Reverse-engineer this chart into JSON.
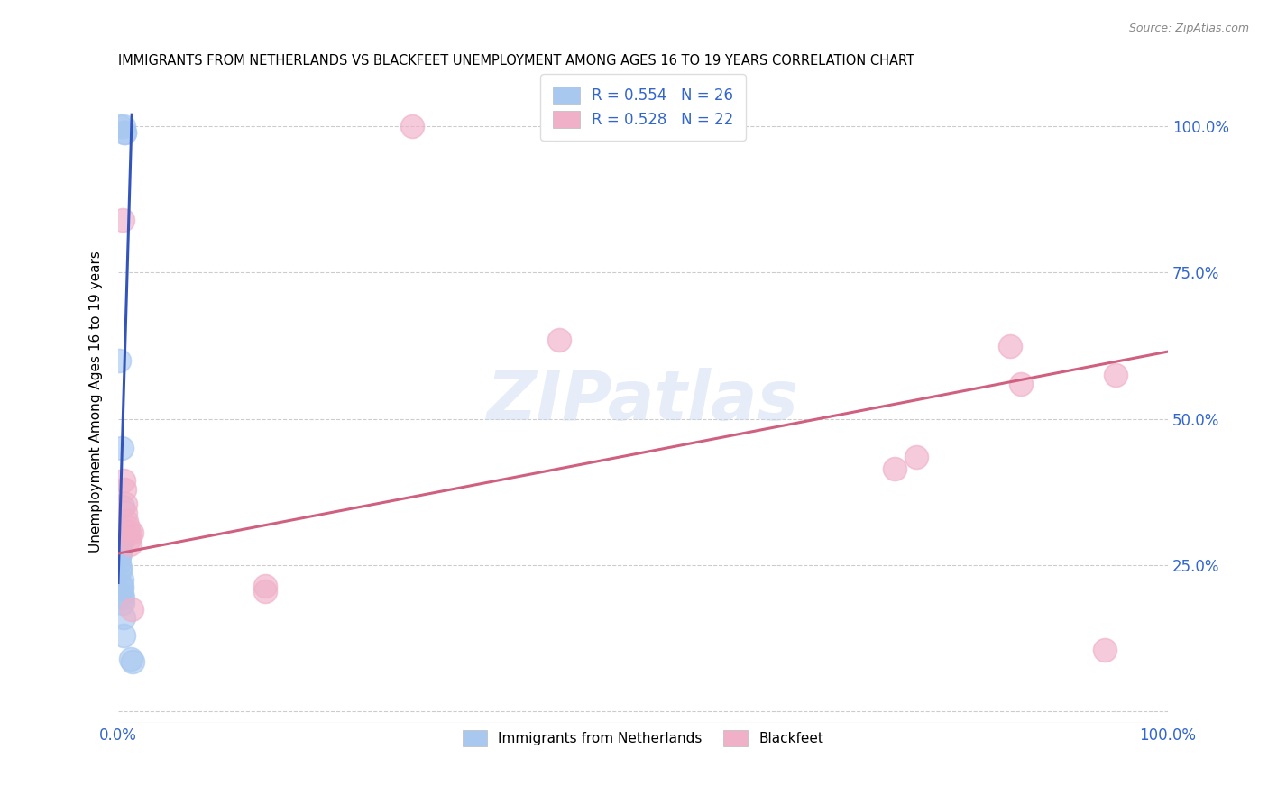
{
  "title": "IMMIGRANTS FROM NETHERLANDS VS BLACKFEET UNEMPLOYMENT AMONG AGES 16 TO 19 YEARS CORRELATION CHART",
  "source": "Source: ZipAtlas.com",
  "ylabel": "Unemployment Among Ages 16 to 19 years",
  "xlim": [
    0.0,
    1.0
  ],
  "ylim": [
    -0.02,
    1.08
  ],
  "yticks": [
    0.0,
    0.25,
    0.5,
    0.75,
    1.0
  ],
  "ytick_labels": [
    "",
    "25.0%",
    "50.0%",
    "75.0%",
    "100.0%"
  ],
  "xticks": [
    0.0,
    0.2,
    0.4,
    0.6,
    0.8,
    1.0
  ],
  "xtick_labels": [
    "0.0%",
    "",
    "",
    "",
    "",
    "100.0%"
  ],
  "legend_label1": "R = 0.554   N = 26",
  "legend_label2": "R = 0.528   N = 22",
  "legend_labels_bottom": [
    "Immigrants from Netherlands",
    "Blackfeet"
  ],
  "blue_color": "#a8c8f0",
  "pink_color": "#f0b0c8",
  "blue_line_color": "#3355bb",
  "pink_line_color": "#d06080",
  "watermark": "ZIPatlas",
  "blue_scatter_x": [
    0.002,
    0.005,
    0.006,
    0.006,
    0.001,
    0.003,
    0.004,
    0.004,
    0.003,
    0.002,
    0.002,
    0.002,
    0.001,
    0.001,
    0.002,
    0.002,
    0.003,
    0.003,
    0.003,
    0.003,
    0.004,
    0.004,
    0.005,
    0.005,
    0.012,
    0.014
  ],
  "blue_scatter_y": [
    1.0,
    1.0,
    0.99,
    0.99,
    0.6,
    0.45,
    0.35,
    0.31,
    0.29,
    0.285,
    0.275,
    0.27,
    0.265,
    0.255,
    0.245,
    0.24,
    0.225,
    0.215,
    0.21,
    0.2,
    0.195,
    0.185,
    0.16,
    0.13,
    0.09,
    0.085
  ],
  "pink_scatter_x": [
    0.004,
    0.005,
    0.006,
    0.007,
    0.007,
    0.008,
    0.009,
    0.01,
    0.01,
    0.011,
    0.013,
    0.013,
    0.14,
    0.14,
    0.28,
    0.42,
    0.74,
    0.76,
    0.85,
    0.86,
    0.94,
    0.95
  ],
  "pink_scatter_y": [
    0.84,
    0.395,
    0.38,
    0.355,
    0.34,
    0.325,
    0.315,
    0.305,
    0.295,
    0.285,
    0.305,
    0.175,
    0.215,
    0.205,
    1.0,
    0.635,
    0.415,
    0.435,
    0.625,
    0.56,
    0.105,
    0.575
  ],
  "blue_trend_x": [
    0.0,
    0.013
  ],
  "blue_trend_y": [
    0.22,
    1.02
  ],
  "pink_trend_x": [
    0.0,
    1.0
  ],
  "pink_trend_y": [
    0.27,
    0.615
  ]
}
